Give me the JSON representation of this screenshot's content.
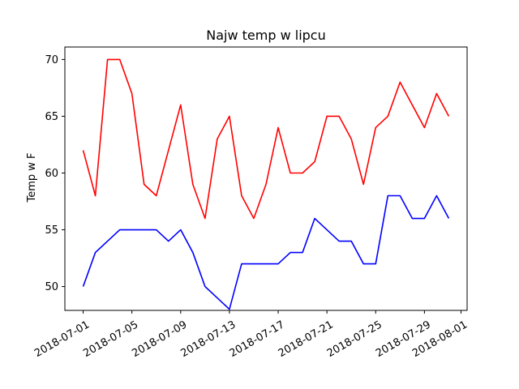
{
  "chart_data": {
    "type": "line",
    "title": "Najw temp w lipcu",
    "xlabel": "",
    "ylabel": "Temp w F",
    "x": [
      "2018-07-01",
      "2018-07-02",
      "2018-07-03",
      "2018-07-04",
      "2018-07-05",
      "2018-07-06",
      "2018-07-07",
      "2018-07-08",
      "2018-07-09",
      "2018-07-10",
      "2018-07-11",
      "2018-07-12",
      "2018-07-13",
      "2018-07-14",
      "2018-07-15",
      "2018-07-16",
      "2018-07-17",
      "2018-07-18",
      "2018-07-19",
      "2018-07-20",
      "2018-07-21",
      "2018-07-22",
      "2018-07-23",
      "2018-07-24",
      "2018-07-25",
      "2018-07-26",
      "2018-07-27",
      "2018-07-28",
      "2018-07-29",
      "2018-07-30",
      "2018-07-31"
    ],
    "series": [
      {
        "color": "#ff0000",
        "values": [
          62,
          58,
          70,
          70,
          67,
          59,
          58,
          62,
          66,
          59,
          56,
          63,
          65,
          58,
          56,
          59,
          64,
          60,
          60,
          61,
          65,
          65,
          63,
          59,
          64,
          65,
          68,
          66,
          64,
          67,
          65
        ]
      },
      {
        "color": "#0000ff",
        "values": [
          50,
          53,
          54,
          55,
          55,
          55,
          55,
          54,
          55,
          53,
          50,
          49,
          48,
          52,
          52,
          52,
          52,
          53,
          53,
          56,
          55,
          54,
          54,
          52,
          52,
          58,
          58,
          56,
          56,
          58,
          56
        ]
      }
    ],
    "xlim": [
      "2018-06-29T12:00",
      "2018-08-01T12:00"
    ],
    "ylim": [
      47.9,
      71.1
    ],
    "xticks": [
      "2018-07-01",
      "2018-07-05",
      "2018-07-09",
      "2018-07-13",
      "2018-07-17",
      "2018-07-21",
      "2018-07-25",
      "2018-07-29",
      "2018-08-01"
    ],
    "yticks": [
      50,
      55,
      60,
      65,
      70
    ],
    "grid": false,
    "legend": "none"
  }
}
